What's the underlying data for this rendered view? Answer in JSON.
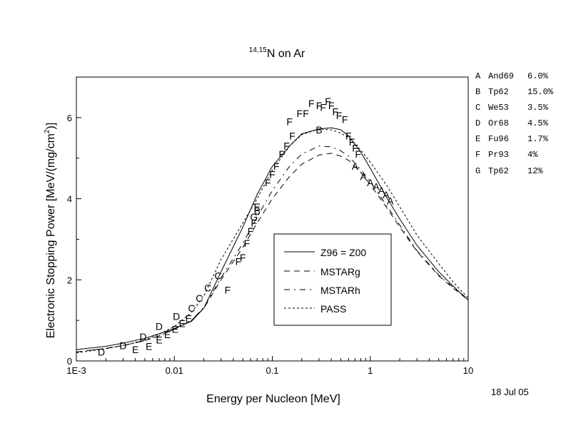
{
  "chart_data": {
    "type": "line",
    "title": "N on Ar",
    "title_superscript": "14,15",
    "xlabel": "Energy per Nucleon [MeV]",
    "ylabel": "Electronic Stopping Power [MeV/(mg/cm",
    "ylabel_superscript": "2",
    "ylabel_tail": ")]",
    "x_scale": "log",
    "xlim": [
      0.001,
      10
    ],
    "ylim": [
      0,
      7
    ],
    "x_ticks": [
      {
        "value": 0.001,
        "label": "1E-3"
      },
      {
        "value": 0.01,
        "label": "0.01"
      },
      {
        "value": 0.1,
        "label": "0.1"
      },
      {
        "value": 1,
        "label": "1"
      },
      {
        "value": 10,
        "label": "10"
      }
    ],
    "y_ticks": [
      {
        "value": 0,
        "label": "0"
      },
      {
        "value": 2,
        "label": "2"
      },
      {
        "value": 4,
        "label": "4"
      },
      {
        "value": 6,
        "label": "6"
      }
    ],
    "grid": false,
    "date": "18 Jul 05",
    "legend": {
      "placement": "center-right inside plot",
      "entries": [
        {
          "label": "Z96 = Z00",
          "dash": "solid"
        },
        {
          "label": "MSTARg",
          "dash": "dashed"
        },
        {
          "label": "MSTARh",
          "dash": "dash-dot"
        },
        {
          "label": "PASS",
          "dash": "short-dash"
        }
      ]
    },
    "series": [
      {
        "name": "Z96 = Z00",
        "dash": "solid",
        "x": [
          0.001,
          0.002,
          0.003,
          0.005,
          0.007,
          0.01,
          0.015,
          0.02,
          0.03,
          0.05,
          0.07,
          0.1,
          0.15,
          0.2,
          0.3,
          0.4,
          0.5,
          0.6,
          0.8,
          1,
          1.5,
          2,
          3,
          5,
          7,
          10
        ],
        "values": [
          0.28,
          0.36,
          0.44,
          0.56,
          0.67,
          0.8,
          0.98,
          1.3,
          2.2,
          3.3,
          4.1,
          4.8,
          5.3,
          5.6,
          5.72,
          5.75,
          5.7,
          5.55,
          5.15,
          4.75,
          4.0,
          3.5,
          2.85,
          2.2,
          1.85,
          1.5
        ]
      },
      {
        "name": "MSTARg",
        "dash": "dashed",
        "x": [
          0.001,
          0.002,
          0.003,
          0.005,
          0.007,
          0.01,
          0.015,
          0.02,
          0.03,
          0.05,
          0.07,
          0.1,
          0.15,
          0.2,
          0.3,
          0.4,
          0.5,
          0.6,
          0.8,
          1,
          1.5,
          2,
          3,
          5,
          7,
          10
        ],
        "values": [
          0.22,
          0.31,
          0.38,
          0.5,
          0.62,
          0.78,
          1.0,
          1.3,
          2.0,
          2.8,
          3.4,
          4.0,
          4.55,
          4.85,
          5.08,
          5.12,
          5.05,
          4.95,
          4.65,
          4.35,
          3.75,
          3.3,
          2.7,
          2.1,
          1.8,
          1.5
        ]
      },
      {
        "name": "MSTARh",
        "dash": "dash-dot",
        "x": [
          0.001,
          0.002,
          0.003,
          0.005,
          0.007,
          0.01,
          0.015,
          0.02,
          0.03,
          0.05,
          0.07,
          0.1,
          0.15,
          0.2,
          0.3,
          0.4,
          0.5,
          0.6,
          0.8,
          1,
          1.5,
          2,
          3,
          5,
          7,
          10
        ],
        "values": [
          0.22,
          0.31,
          0.38,
          0.5,
          0.62,
          0.78,
          1.0,
          1.32,
          2.05,
          2.9,
          3.55,
          4.2,
          4.8,
          5.1,
          5.3,
          5.28,
          5.18,
          5.05,
          4.72,
          4.42,
          3.8,
          3.35,
          2.72,
          2.12,
          1.82,
          1.52
        ]
      },
      {
        "name": "PASS",
        "dash": "short-dash",
        "x": [
          0.001,
          0.002,
          0.003,
          0.005,
          0.007,
          0.01,
          0.015,
          0.02,
          0.03,
          0.05,
          0.07,
          0.1,
          0.15,
          0.2,
          0.3,
          0.4,
          0.5,
          0.6,
          0.8,
          1,
          1.5,
          2,
          3,
          5,
          7,
          10
        ],
        "values": [
          0.2,
          0.3,
          0.38,
          0.52,
          0.66,
          0.85,
          1.2,
          1.6,
          2.5,
          3.4,
          4.0,
          4.7,
          5.3,
          5.58,
          5.72,
          5.7,
          5.62,
          5.5,
          5.2,
          4.9,
          4.3,
          3.8,
          3.1,
          2.4,
          1.95,
          1.55
        ]
      }
    ],
    "data_points": [
      {
        "label": "A",
        "x": 0.7,
        "y": 4.8
      },
      {
        "label": "A",
        "x": 0.85,
        "y": 4.55
      },
      {
        "label": "A",
        "x": 1.0,
        "y": 4.4
      },
      {
        "label": "A",
        "x": 1.15,
        "y": 4.3
      },
      {
        "label": "A",
        "x": 1.3,
        "y": 4.2
      },
      {
        "label": "A",
        "x": 1.45,
        "y": 4.1
      },
      {
        "label": "A",
        "x": 1.6,
        "y": 3.95
      },
      {
        "label": "B",
        "x": 0.07,
        "y": 3.7
      },
      {
        "label": "B",
        "x": 0.3,
        "y": 5.7
      },
      {
        "label": "C",
        "x": 0.015,
        "y": 1.3
      },
      {
        "label": "C",
        "x": 0.018,
        "y": 1.55
      },
      {
        "label": "C",
        "x": 0.022,
        "y": 1.8
      },
      {
        "label": "C",
        "x": 0.028,
        "y": 2.1
      },
      {
        "label": "D",
        "x": 0.0018,
        "y": 0.22
      },
      {
        "label": "D",
        "x": 0.003,
        "y": 0.38
      },
      {
        "label": "D",
        "x": 0.0048,
        "y": 0.6
      },
      {
        "label": "D",
        "x": 0.007,
        "y": 0.85
      },
      {
        "label": "D",
        "x": 0.0105,
        "y": 1.1
      },
      {
        "label": "E",
        "x": 0.004,
        "y": 0.28
      },
      {
        "label": "E",
        "x": 0.0055,
        "y": 0.36
      },
      {
        "label": "E",
        "x": 0.007,
        "y": 0.52
      },
      {
        "label": "E",
        "x": 0.0085,
        "y": 0.65
      },
      {
        "label": "E",
        "x": 0.0102,
        "y": 0.78
      },
      {
        "label": "E",
        "x": 0.012,
        "y": 0.92
      },
      {
        "label": "E",
        "x": 0.014,
        "y": 1.05
      },
      {
        "label": "E",
        "x": 0.07,
        "y": 3.8
      },
      {
        "label": "F",
        "x": 0.035,
        "y": 1.75
      },
      {
        "label": "F",
        "x": 0.045,
        "y": 2.45
      },
      {
        "label": "F",
        "x": 0.05,
        "y": 2.55
      },
      {
        "label": "F",
        "x": 0.055,
        "y": 2.9
      },
      {
        "label": "F",
        "x": 0.06,
        "y": 3.2
      },
      {
        "label": "F",
        "x": 0.065,
        "y": 3.4
      },
      {
        "label": "F",
        "x": 0.09,
        "y": 4.4
      },
      {
        "label": "F",
        "x": 0.1,
        "y": 4.6
      },
      {
        "label": "F",
        "x": 0.11,
        "y": 4.8
      },
      {
        "label": "F",
        "x": 0.125,
        "y": 5.1
      },
      {
        "label": "F",
        "x": 0.14,
        "y": 5.3
      },
      {
        "label": "F",
        "x": 0.16,
        "y": 5.55
      },
      {
        "label": "F",
        "x": 0.15,
        "y": 5.9
      },
      {
        "label": "F",
        "x": 0.19,
        "y": 6.1
      },
      {
        "label": "F",
        "x": 0.22,
        "y": 6.1
      },
      {
        "label": "F",
        "x": 0.25,
        "y": 6.35
      },
      {
        "label": "F",
        "x": 0.3,
        "y": 6.3
      },
      {
        "label": "F",
        "x": 0.33,
        "y": 6.25
      },
      {
        "label": "F",
        "x": 0.37,
        "y": 6.4
      },
      {
        "label": "F",
        "x": 0.4,
        "y": 6.3
      },
      {
        "label": "F",
        "x": 0.44,
        "y": 6.15
      },
      {
        "label": "F",
        "x": 0.48,
        "y": 6.05
      },
      {
        "label": "F",
        "x": 0.55,
        "y": 5.95
      },
      {
        "label": "F",
        "x": 0.6,
        "y": 5.55
      },
      {
        "label": "F",
        "x": 0.65,
        "y": 5.4
      },
      {
        "label": "F",
        "x": 0.7,
        "y": 5.25
      },
      {
        "label": "F",
        "x": 0.75,
        "y": 5.1
      },
      {
        "label": "G",
        "x": 0.065,
        "y": 3.55
      }
    ],
    "reference_table": [
      {
        "letter": "A",
        "ref": "And69",
        "error": "6.0%"
      },
      {
        "letter": "B",
        "ref": "Tp62",
        "error": "15.0%"
      },
      {
        "letter": "C",
        "ref": "We53",
        "error": "3.5%"
      },
      {
        "letter": "D",
        "ref": "Or68",
        "error": "4.5%"
      },
      {
        "letter": "E",
        "ref": "Fu96",
        "error": "1.7%"
      },
      {
        "letter": "F",
        "ref": "Pr93",
        "error": "4%"
      },
      {
        "letter": "G",
        "ref": "Tp62",
        "error": "12%"
      }
    ]
  }
}
